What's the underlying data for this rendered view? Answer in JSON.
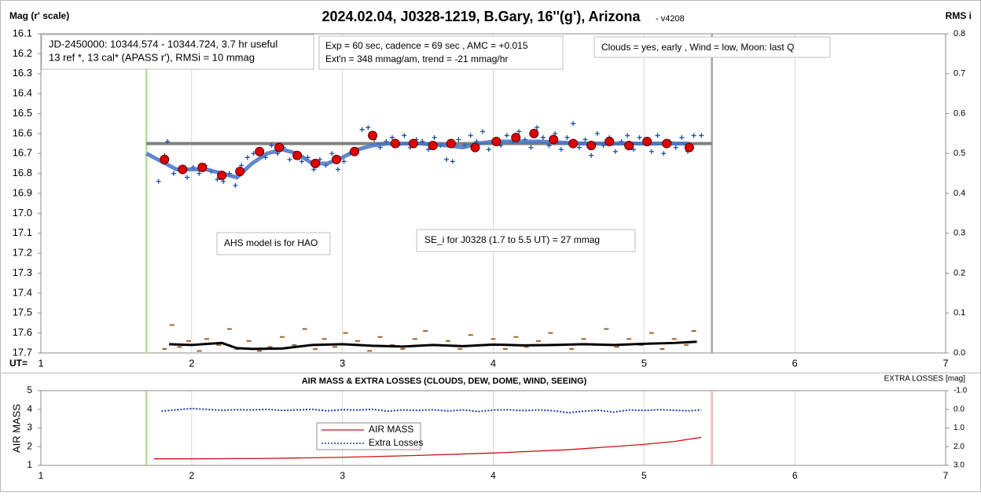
{
  "chart_data": [
    {
      "type": "scatter",
      "title": "2024.02.04, J0328-1219, B.Gary, 16''(g'), Arizona",
      "version": "- v4208",
      "y_label": "Mag (r' scale)",
      "y2_label": "RMS i",
      "x_label": "UT=",
      "xlim": [
        1,
        7
      ],
      "xticks": [
        1,
        2,
        3,
        4,
        5,
        6,
        7
      ],
      "xgrid": true,
      "ylim": [
        17.7,
        16.1
      ],
      "yticks": [
        16.1,
        16.2,
        16.3,
        16.4,
        16.5,
        16.6,
        16.7,
        16.8,
        16.9,
        {
          "value": 17,
          "label": "17.0"
        },
        17.1,
        17.2,
        17.3,
        17.4,
        17.5,
        17.6,
        17.7
      ],
      "y2lim": [
        0,
        0.8
      ],
      "y2ticks": [
        {
          "value": 0,
          "label": "0.0"
        },
        0.1,
        0.2,
        0.3,
        0.4,
        0.5,
        0.6,
        0.7,
        0.8
      ],
      "annotations": [
        [
          "JD-2450000: 10344.574 - 10344.724, 3.7 hr useful",
          "13 ref *, 13 cal*  (APASS r'), RMSi = 10 mmag"
        ],
        [
          "Exp = 60 sec, cadence = 69 sec , AMC = +0.015",
          "Ext'n = 348 mmag/am, trend = -21 mmag/hr"
        ],
        [
          "Clouds = yes, early , Wind = low,  Moon:  last Q"
        ],
        [
          "AHS model is for HAO"
        ],
        [
          "SE_i for J0328 (1.7 to 5.5 UT) = 27 mmag"
        ]
      ],
      "vlines": [
        {
          "x": 1.7,
          "color": "#b6de96"
        },
        {
          "x": 5.45,
          "color": "#a6a6a6"
        }
      ],
      "ref_line": {
        "y": 16.65,
        "x": [
          1.7,
          5.45
        ],
        "color": "#808080"
      },
      "series": [
        {
          "style": "cross",
          "color": "#1f4e9c",
          "x": [
            1.78,
            1.82,
            1.84,
            1.88,
            1.93,
            1.97,
            2.01,
            2.05,
            2.09,
            2.13,
            2.17,
            2.21,
            2.25,
            2.29,
            2.33,
            2.37,
            2.41,
            2.45,
            2.49,
            2.53,
            2.57,
            2.61,
            2.65,
            2.69,
            2.73,
            2.77,
            2.81,
            2.85,
            2.89,
            2.93,
            2.97,
            3.01,
            3.05,
            3.09,
            3.13,
            3.17,
            3.21,
            3.25,
            3.29,
            3.33,
            3.37,
            3.41,
            3.45,
            3.49,
            3.53,
            3.57,
            3.61,
            3.65,
            3.69,
            3.73,
            3.77,
            3.81,
            3.85,
            3.89,
            3.93,
            3.97,
            4.01,
            4.05,
            4.09,
            4.13,
            4.17,
            4.21,
            4.25,
            4.29,
            4.33,
            4.37,
            4.41,
            4.45,
            4.49,
            4.53,
            4.57,
            4.61,
            4.65,
            4.69,
            4.73,
            4.77,
            4.81,
            4.85,
            4.89,
            4.93,
            4.97,
            5.01,
            5.05,
            5.09,
            5.13,
            5.17,
            5.21,
            5.25,
            5.29,
            5.33,
            5.38
          ],
          "values": [
            16.84,
            16.71,
            16.64,
            16.8,
            16.79,
            16.82,
            16.77,
            16.8,
            16.76,
            16.79,
            16.83,
            16.84,
            16.8,
            16.86,
            16.76,
            16.72,
            16.7,
            16.68,
            16.72,
            16.66,
            16.7,
            16.67,
            16.73,
            16.7,
            16.74,
            16.72,
            16.78,
            16.73,
            16.76,
            16.7,
            16.78,
            16.74,
            16.7,
            16.68,
            16.58,
            16.57,
            16.63,
            16.67,
            16.64,
            16.62,
            16.66,
            16.61,
            16.67,
            16.63,
            16.64,
            16.68,
            16.62,
            16.66,
            16.73,
            16.74,
            16.63,
            16.66,
            16.61,
            16.64,
            16.59,
            16.68,
            16.63,
            16.66,
            16.61,
            16.64,
            16.59,
            16.63,
            16.67,
            16.57,
            16.62,
            16.66,
            16.6,
            16.68,
            16.62,
            16.55,
            16.67,
            16.63,
            16.71,
            16.6,
            16.66,
            16.62,
            16.69,
            16.64,
            16.61,
            16.68,
            16.62,
            16.65,
            16.69,
            16.61,
            16.7,
            16.64,
            16.67,
            16.62,
            16.69,
            16.61,
            16.61
          ]
        },
        {
          "style": "line",
          "color": "#4472c4",
          "x": [
            1.7,
            1.8,
            1.9,
            2.0,
            2.1,
            2.2,
            2.3,
            2.4,
            2.5,
            2.6,
            2.7,
            2.8,
            2.9,
            3.0,
            3.1,
            3.2,
            3.3,
            3.5,
            3.7,
            3.8,
            3.9,
            4.0,
            4.3,
            4.6,
            5.0,
            5.3
          ],
          "values": [
            16.7,
            16.74,
            16.78,
            16.78,
            16.78,
            16.8,
            16.82,
            16.75,
            16.7,
            16.68,
            16.7,
            16.75,
            16.75,
            16.72,
            16.68,
            16.66,
            16.65,
            16.65,
            16.66,
            16.67,
            16.65,
            16.64,
            16.64,
            16.65,
            16.65,
            16.65
          ]
        },
        {
          "style": "circle",
          "color": "#e00000",
          "x": [
            1.82,
            1.94,
            2.07,
            2.2,
            2.32,
            2.45,
            2.58,
            2.7,
            2.82,
            2.96,
            3.08,
            3.2,
            3.35,
            3.47,
            3.6,
            3.72,
            3.88,
            4.02,
            4.15,
            4.27,
            4.4,
            4.53,
            4.65,
            4.77,
            4.9,
            5.02,
            5.15,
            5.3
          ],
          "values": [
            16.73,
            16.78,
            16.77,
            16.81,
            16.79,
            16.69,
            16.67,
            16.71,
            16.75,
            16.73,
            16.69,
            16.61,
            16.65,
            16.65,
            16.66,
            16.65,
            16.67,
            16.64,
            16.62,
            16.6,
            16.63,
            16.65,
            16.66,
            16.64,
            16.66,
            16.64,
            16.65,
            16.67
          ]
        },
        {
          "style": "dash",
          "color": "#a0642a",
          "axis": "y2",
          "x": [
            1.82,
            1.87,
            1.92,
            1.98,
            2.05,
            2.1,
            2.18,
            2.25,
            2.3,
            2.38,
            2.45,
            2.52,
            2.6,
            2.68,
            2.75,
            2.82,
            2.88,
            2.95,
            3.02,
            3.1,
            3.18,
            3.25,
            3.33,
            3.4,
            3.48,
            3.55,
            3.62,
            3.7,
            3.78,
            3.85,
            3.92,
            4.0,
            4.08,
            4.15,
            4.22,
            4.3,
            4.38,
            4.45,
            4.52,
            4.6,
            4.68,
            4.75,
            4.82,
            4.9,
            4.98,
            5.05,
            5.12,
            5.2,
            5.28,
            5.33
          ],
          "values": [
            0.01,
            0.07,
            0.015,
            0.03,
            0.005,
            0.035,
            0.02,
            0.06,
            0.01,
            0.03,
            0.005,
            0.015,
            0.04,
            0.02,
            0.06,
            0.01,
            0.035,
            0.015,
            0.05,
            0.03,
            0.005,
            0.04,
            0.02,
            0.01,
            0.035,
            0.055,
            0.02,
            0.03,
            0.01,
            0.045,
            0.02,
            0.035,
            0.01,
            0.04,
            0.015,
            0.03,
            0.05,
            0.02,
            0.01,
            0.035,
            0.02,
            0.06,
            0.015,
            0.035,
            0.02,
            0.05,
            0.01,
            0.035,
            0.02,
            0.055
          ]
        },
        {
          "style": "line",
          "color": "#000000",
          "axis": "y2",
          "x": [
            1.85,
            2.0,
            2.2,
            2.3,
            2.4,
            2.6,
            2.8,
            3.0,
            3.2,
            3.4,
            3.6,
            3.8,
            4.0,
            4.2,
            4.4,
            4.6,
            4.8,
            5.0,
            5.2,
            5.35
          ],
          "values": [
            0.022,
            0.02,
            0.025,
            0.012,
            0.01,
            0.011,
            0.02,
            0.022,
            0.018,
            0.016,
            0.02,
            0.017,
            0.021,
            0.019,
            0.02,
            0.022,
            0.02,
            0.023,
            0.025,
            0.028
          ]
        }
      ]
    },
    {
      "type": "line",
      "title": "AIR MASS & EXTRA LOSSES (CLOUDS, DEW, DOME, WIND, SEEING)",
      "y_label": "AIR MASS",
      "y2_label": "EXTRA LOSSES [mag]",
      "xlim": [
        1,
        7
      ],
      "xticks": [
        1,
        2,
        3,
        4,
        5,
        6,
        7
      ],
      "xgrid": true,
      "ylim": [
        1,
        5
      ],
      "yticks": [
        1,
        2,
        3,
        4,
        5
      ],
      "y2lim": [
        3,
        -1
      ],
      "y2ticks": [
        {
          "value": -1,
          "label": "-1.0"
        },
        {
          "value": 0,
          "label": "0.0"
        },
        {
          "value": 1,
          "label": "1.0"
        },
        {
          "value": 2,
          "label": "2.0"
        },
        {
          "value": 3,
          "label": "3.0"
        }
      ],
      "vlines": [
        {
          "x": 1.7,
          "color": "#b6de96"
        },
        {
          "x": 5.45,
          "color": "#f4b6be"
        }
      ],
      "legend": "center",
      "series": [
        {
          "name": "AIR MASS",
          "style": "line",
          "color": "#d01010",
          "x": [
            1.75,
            2.0,
            2.5,
            3.0,
            3.5,
            4.0,
            4.5,
            5.0,
            5.2,
            5.38
          ],
          "values": [
            1.35,
            1.35,
            1.37,
            1.43,
            1.53,
            1.66,
            1.84,
            2.12,
            2.28,
            2.5
          ]
        },
        {
          "name": "Extra Losses",
          "style": "dotted",
          "color": "#1f3c9c",
          "axis": "y2",
          "x": [
            1.8,
            1.9,
            2.0,
            2.1,
            2.2,
            2.3,
            2.4,
            2.5,
            2.6,
            2.7,
            2.8,
            2.9,
            3.0,
            3.1,
            3.2,
            3.3,
            3.4,
            3.5,
            3.6,
            3.7,
            3.8,
            3.9,
            4.0,
            4.1,
            4.2,
            4.3,
            4.4,
            4.5,
            4.6,
            4.7,
            4.8,
            4.9,
            5.0,
            5.1,
            5.2,
            5.3,
            5.38
          ],
          "values": [
            0.1,
            0.02,
            -0.04,
            0.0,
            0.05,
            0.02,
            0.03,
            0.0,
            0.06,
            0.03,
            0.0,
            0.08,
            0.02,
            0.04,
            0.0,
            0.1,
            0.03,
            0.06,
            0.02,
            0.09,
            0.03,
            0.12,
            0.04,
            0.02,
            0.07,
            0.03,
            0.08,
            0.18,
            0.1,
            0.05,
            0.15,
            0.03,
            0.06,
            0.02,
            0.05,
            0.08,
            0.03
          ]
        }
      ]
    }
  ]
}
